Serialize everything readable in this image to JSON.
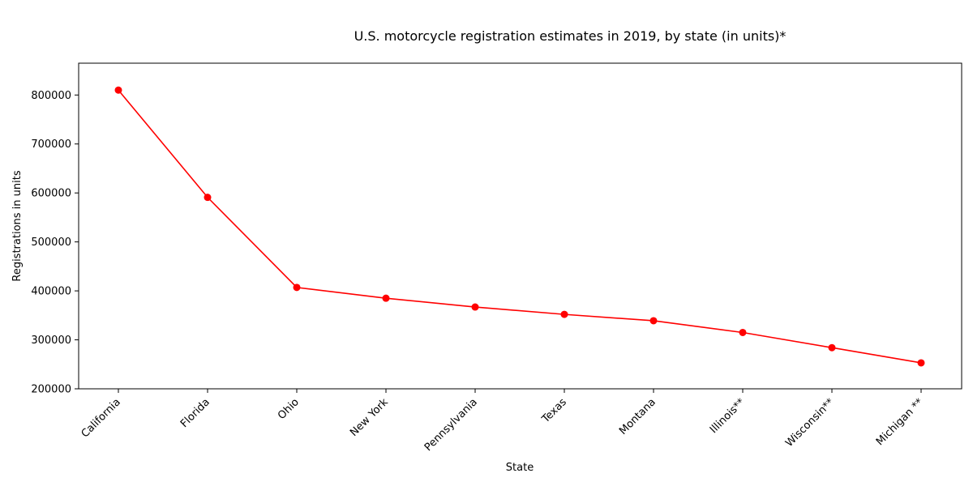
{
  "chart_data": {
    "type": "line",
    "title": "U.S. motorcycle registration estimates in 2019, by state (in units)*",
    "xlabel": "State",
    "ylabel": "Registrations in units",
    "categories": [
      "California",
      "Florida",
      "Ohio",
      "New York",
      "Pennsylvania",
      "Texas",
      "Montana",
      "Illinois**",
      "Wisconsin**",
      "Michigan **"
    ],
    "series": [
      {
        "values": [
          810000,
          591000,
          407000,
          385000,
          367000,
          352000,
          339000,
          315000,
          284000,
          253000
        ],
        "color": "#ff0000",
        "marker": "circle"
      }
    ],
    "ylim": [
      200000,
      865000
    ],
    "yticks": [
      200000,
      300000,
      400000,
      500000,
      600000,
      700000,
      800000
    ],
    "grid": false,
    "legend": "none"
  }
}
